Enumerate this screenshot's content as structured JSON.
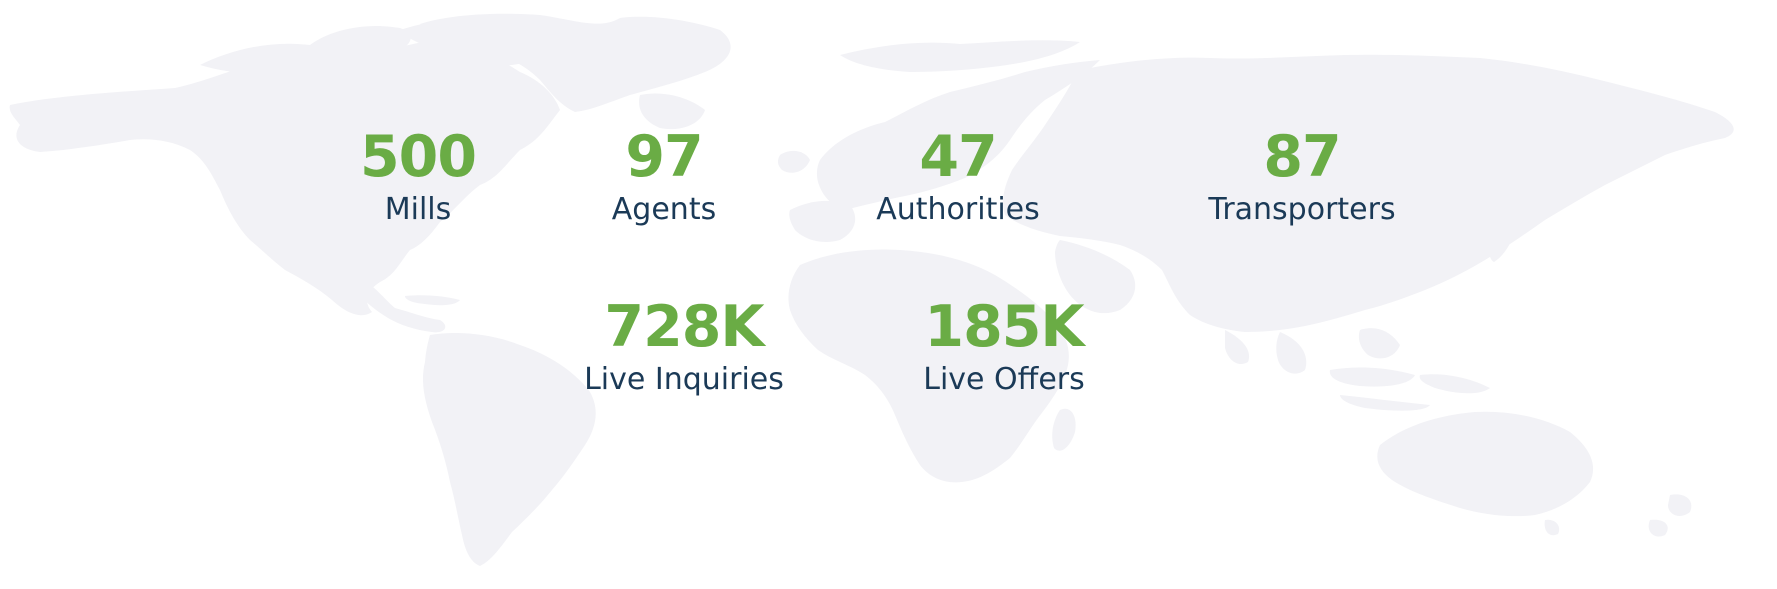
{
  "colors": {
    "value": "#6aac45",
    "label": "#1b3a57",
    "map": "#f2f2f6"
  },
  "background": {
    "icon": "world-map-icon"
  },
  "stats": [
    {
      "id": "mills",
      "value": "500",
      "label": "Mills"
    },
    {
      "id": "agents",
      "value": "97",
      "label": "Agents"
    },
    {
      "id": "authorities",
      "value": "47",
      "label": "Authorities"
    },
    {
      "id": "transporters",
      "value": "87",
      "label": "Transporters"
    },
    {
      "id": "inquiries",
      "value": "728K",
      "label": "Live Inquiries"
    },
    {
      "id": "offers",
      "value": "185K",
      "label": "Live Offers"
    }
  ]
}
